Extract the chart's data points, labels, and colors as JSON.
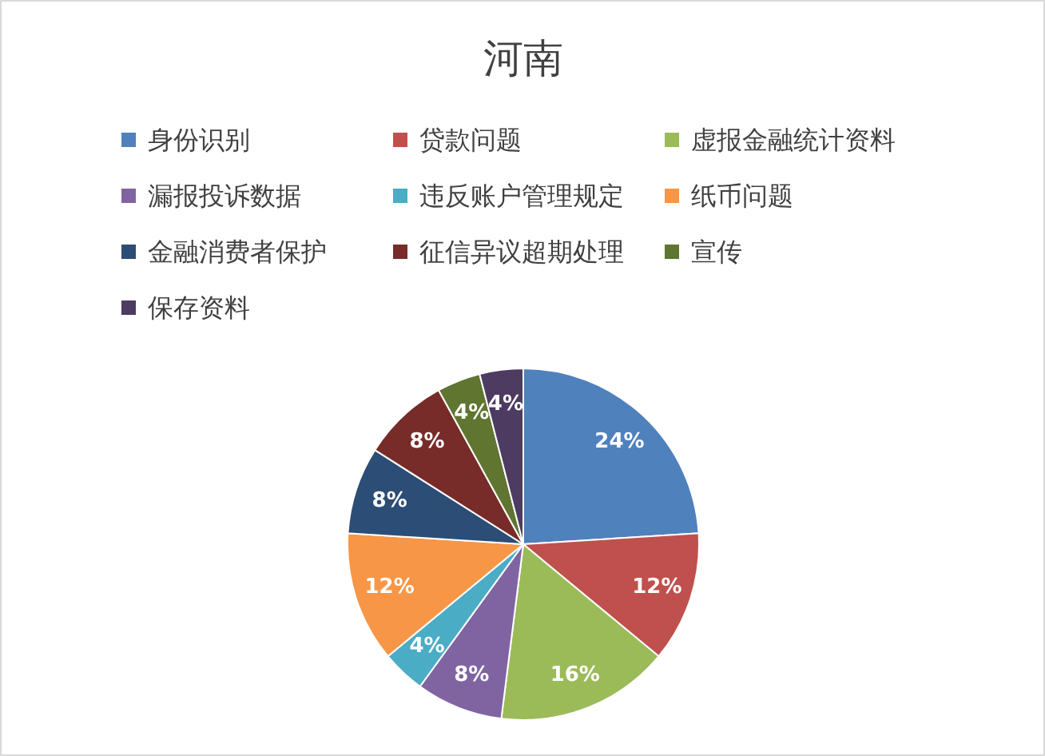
{
  "chart_data": {
    "type": "pie",
    "title": "河南",
    "categories": [
      "身份识别",
      "贷款问题",
      "虚报金融统计资料",
      "漏报投诉数据",
      "违反账户管理规定",
      "纸币问题",
      "金融消费者保护",
      "征信异议超期处理",
      "宣传",
      "保存资料"
    ],
    "values": [
      24,
      12,
      16,
      8,
      4,
      12,
      8,
      8,
      4,
      4
    ],
    "colors": [
      "#4f81bd",
      "#c0504d",
      "#9bbb59",
      "#8064a2",
      "#4bacc6",
      "#f79646",
      "#2c4d75",
      "#772c2a",
      "#5f7530",
      "#4d3b62"
    ],
    "value_labels": [
      "24%",
      "12%",
      "16%",
      "8%",
      "4%",
      "12%",
      "8%",
      "8%",
      "4%",
      "4%"
    ],
    "legend": "top"
  }
}
